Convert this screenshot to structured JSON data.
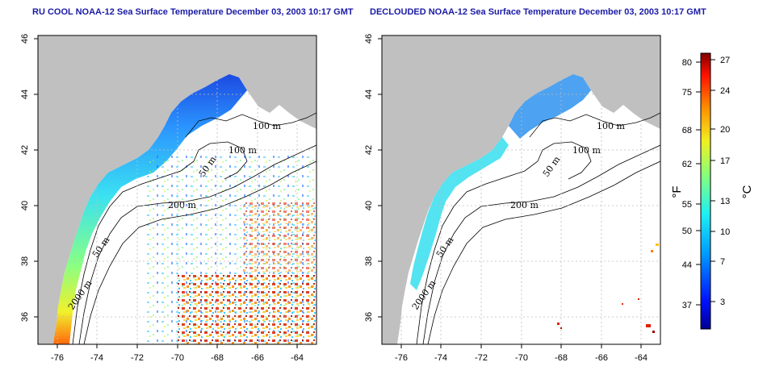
{
  "left_panel": {
    "title": "RU COOL NOAA-12 Sea Surface Temperature December 03, 2003 10:17 GMT"
  },
  "right_panel": {
    "title": "DECLOUDED NOAA-12 Sea Surface Temperature December 03, 2003 10:17 GMT"
  },
  "axes": {
    "lon_ticks": [
      "-76",
      "-74",
      "-72",
      "-70",
      "-68",
      "-66",
      "-64"
    ],
    "lat_ticks": [
      "46",
      "44",
      "42",
      "40",
      "38",
      "36"
    ]
  },
  "contours": {
    "labels": [
      "100 m",
      "100 m",
      "50 m",
      "200 m",
      "50 m",
      "2000 m"
    ]
  },
  "colorbar": {
    "fahrenheit_ticks": [
      "80",
      "75",
      "68",
      "62",
      "55",
      "50",
      "44",
      "37"
    ],
    "celsius_ticks": [
      "27",
      "24",
      "20",
      "17",
      "13",
      "10",
      "7",
      "3"
    ],
    "fahrenheit_unit": "°F",
    "celsius_unit": "°C"
  },
  "colors": {
    "land": "#c0c0c0",
    "title": "#1a1aa6",
    "grid": "#bdbdbd"
  }
}
